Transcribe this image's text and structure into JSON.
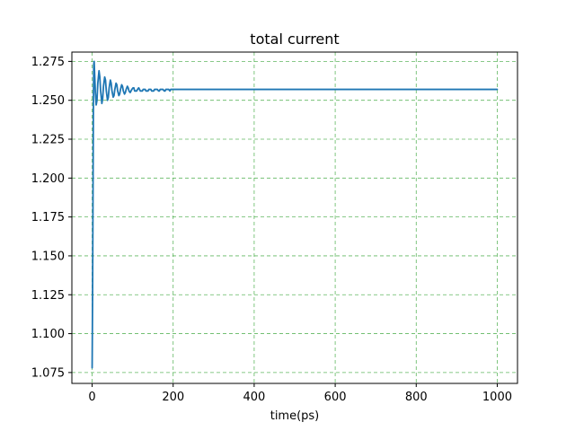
{
  "chart_data": {
    "type": "line",
    "title": "total current",
    "xlabel": "time(ps)",
    "ylabel": "",
    "xlim": [
      -50,
      1050
    ],
    "ylim": [
      1.068,
      1.281
    ],
    "x_ticks": [
      0,
      200,
      400,
      600,
      800,
      1000
    ],
    "x_tick_labels": [
      "0",
      "200",
      "400",
      "600",
      "800",
      "1000"
    ],
    "y_ticks": [
      1.075,
      1.1,
      1.125,
      1.15,
      1.175,
      1.2,
      1.225,
      1.25,
      1.275
    ],
    "y_tick_labels": [
      "1.075",
      "1.100",
      "1.125",
      "1.150",
      "1.175",
      "1.200",
      "1.225",
      "1.250",
      "1.275"
    ],
    "grid": true,
    "grid_color": "#2ca02c",
    "series": [
      {
        "color": "#1f77b4",
        "x": [
          0,
          1,
          2,
          3,
          4,
          5,
          6,
          8,
          10,
          12,
          14,
          17,
          19,
          21,
          24,
          26,
          28,
          31,
          33,
          35,
          38,
          40,
          42,
          45,
          47,
          49,
          52,
          54,
          56,
          59,
          61,
          63,
          66,
          68,
          70,
          73,
          75,
          77,
          80,
          82,
          84,
          87,
          89,
          91,
          94,
          96,
          98,
          101,
          103,
          105,
          108,
          110,
          112,
          115,
          117,
          119,
          122,
          124,
          126,
          129,
          131,
          133,
          136,
          138,
          140,
          143,
          145,
          147,
          150,
          152,
          154,
          157,
          159,
          161,
          164,
          166,
          168,
          171,
          173,
          175,
          178,
          180,
          182,
          185,
          187,
          189,
          192,
          194,
          196,
          199,
          201,
          203,
          206,
          208,
          210,
          213,
          215,
          217,
          220,
          222,
          224,
          227,
          229,
          231,
          234,
          236,
          238,
          241,
          243,
          245,
          248,
          250,
          252,
          255,
          257,
          259,
          262,
          264,
          266,
          269,
          271,
          273,
          276,
          278,
          280,
          283,
          285,
          287,
          290,
          292,
          294,
          297,
          299,
          350,
          400,
          500,
          600,
          700,
          800,
          900,
          1000
        ],
        "y": [
          1.078,
          1.12,
          1.18,
          1.24,
          1.273,
          1.275,
          1.268,
          1.255,
          1.247,
          1.25,
          1.261,
          1.269,
          1.265,
          1.256,
          1.248,
          1.251,
          1.259,
          1.265,
          1.263,
          1.256,
          1.25,
          1.252,
          1.258,
          1.263,
          1.261,
          1.256,
          1.252,
          1.253,
          1.257,
          1.261,
          1.26,
          1.256,
          1.253,
          1.254,
          1.257,
          1.26,
          1.259,
          1.256,
          1.254,
          1.255,
          1.257,
          1.259,
          1.258,
          1.256,
          1.255,
          1.256,
          1.257,
          1.258,
          1.258,
          1.256,
          1.256,
          1.256,
          1.257,
          1.258,
          1.257,
          1.256,
          1.256,
          1.256,
          1.257,
          1.257,
          1.257,
          1.256,
          1.256,
          1.256,
          1.257,
          1.257,
          1.257,
          1.256,
          1.256,
          1.256,
          1.257,
          1.257,
          1.257,
          1.257,
          1.256,
          1.256,
          1.257,
          1.257,
          1.257,
          1.257,
          1.256,
          1.256,
          1.257,
          1.257,
          1.257,
          1.257,
          1.256,
          1.257,
          1.257,
          1.257,
          1.257,
          1.257,
          1.257,
          1.257,
          1.257,
          1.257,
          1.257,
          1.257,
          1.257,
          1.257,
          1.257,
          1.257,
          1.257,
          1.257,
          1.257,
          1.257,
          1.257,
          1.257,
          1.257,
          1.257,
          1.257,
          1.257,
          1.257,
          1.257,
          1.257,
          1.257,
          1.257,
          1.257,
          1.257,
          1.257,
          1.257,
          1.257,
          1.257,
          1.257,
          1.257,
          1.257,
          1.257,
          1.257,
          1.257,
          1.257,
          1.257,
          1.257,
          1.257,
          1.257,
          1.257,
          1.257,
          1.257,
          1.257,
          1.257,
          1.257,
          1.257
        ]
      }
    ]
  }
}
